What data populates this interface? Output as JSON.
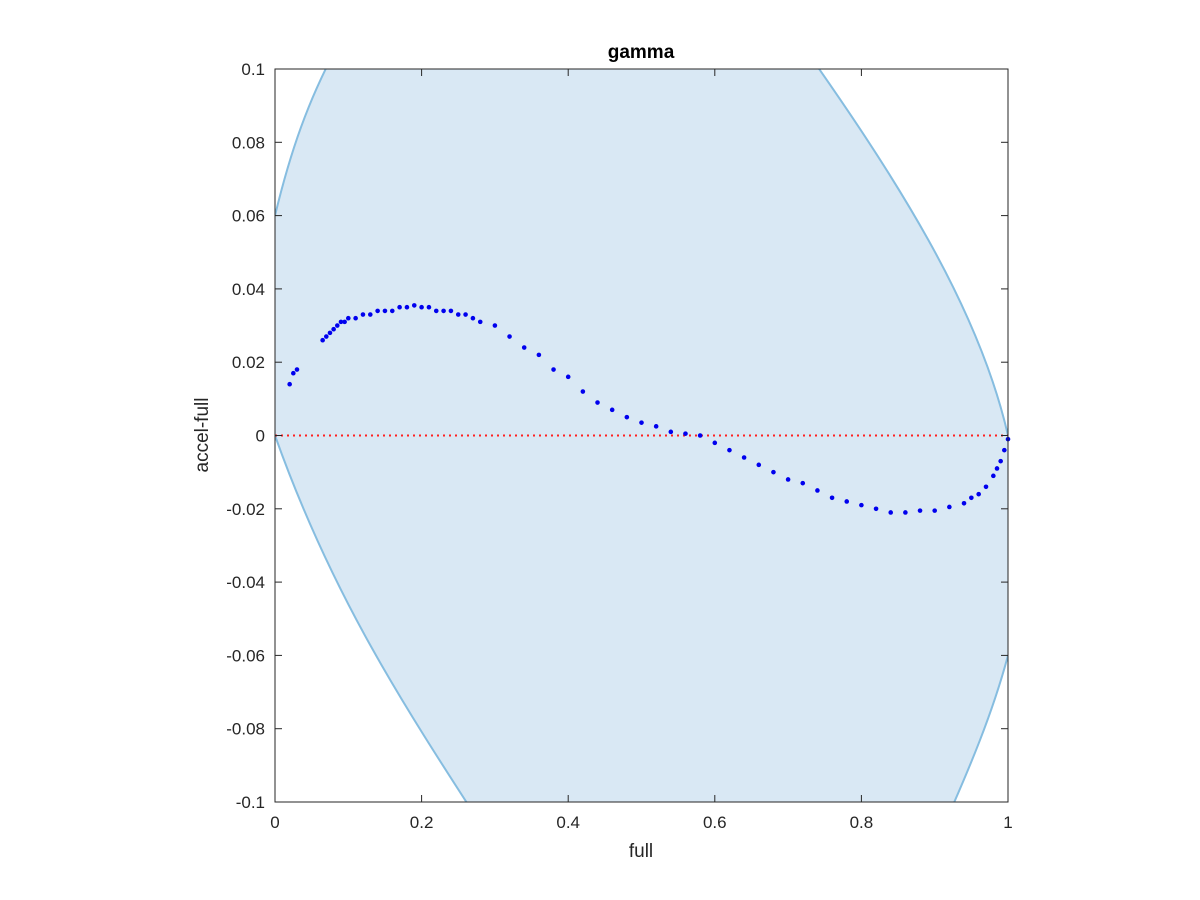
{
  "chart_data": {
    "type": "scatter",
    "title": "gamma",
    "xlabel": "full",
    "ylabel": "accel-full",
    "xlim": [
      0,
      1
    ],
    "ylim": [
      -0.1,
      0.1
    ],
    "x_ticks": [
      0,
      0.2,
      0.4,
      0.6,
      0.8,
      1
    ],
    "x_tick_labels": [
      "0",
      "0.2",
      "0.4",
      "0.6",
      "0.8",
      "1"
    ],
    "y_ticks": [
      -0.1,
      -0.08,
      -0.06,
      -0.04,
      -0.02,
      0,
      0.02,
      0.04,
      0.06,
      0.08,
      0.1
    ],
    "y_tick_labels": [
      "-0.1",
      "-0.08",
      "-0.06",
      "-0.04",
      "-0.02",
      "0",
      "0.02",
      "0.04",
      "0.06",
      "0.08",
      "0.1"
    ],
    "grid": false,
    "colors": {
      "points": "#0000ee",
      "band_fill": "#d9e8f4",
      "band_edge": "#86bde0",
      "reference_line": "#ff2020",
      "axes": "#262626"
    },
    "reference_line": {
      "y": 0,
      "style": "dotted"
    },
    "band": {
      "description_points_upper": [
        [
          0,
          0.06
        ],
        [
          0.1,
          0.1
        ],
        [
          0.7,
          0.1
        ],
        [
          1,
          0
        ]
      ],
      "description_points_lower": [
        [
          0,
          0
        ],
        [
          0.3,
          -0.1
        ],
        [
          0.9,
          -0.1
        ],
        [
          1,
          -0.06
        ]
      ]
    },
    "series": [
      {
        "x": [
          0.02,
          0.025,
          0.03,
          0.065,
          0.07,
          0.075,
          0.08,
          0.085,
          0.09,
          0.095,
          0.1,
          0.11,
          0.12,
          0.13,
          0.14,
          0.15,
          0.16,
          0.17,
          0.18,
          0.19,
          0.2,
          0.21,
          0.22,
          0.23,
          0.24,
          0.25,
          0.26,
          0.27,
          0.28,
          0.3,
          0.32,
          0.34,
          0.36,
          0.38,
          0.4,
          0.42,
          0.44,
          0.46,
          0.48,
          0.5,
          0.52,
          0.54,
          0.56,
          0.58,
          0.6,
          0.62,
          0.64,
          0.66,
          0.68,
          0.7,
          0.72,
          0.74,
          0.76,
          0.78,
          0.8,
          0.82,
          0.84,
          0.86,
          0.88,
          0.9,
          0.92,
          0.94,
          0.95,
          0.96,
          0.97,
          0.98,
          0.985,
          0.99,
          0.995,
          1.0
        ],
        "y": [
          0.014,
          0.017,
          0.018,
          0.026,
          0.027,
          0.028,
          0.029,
          0.03,
          0.031,
          0.031,
          0.032,
          0.032,
          0.033,
          0.033,
          0.034,
          0.034,
          0.034,
          0.035,
          0.035,
          0.0355,
          0.035,
          0.035,
          0.034,
          0.034,
          0.034,
          0.033,
          0.033,
          0.032,
          0.031,
          0.03,
          0.027,
          0.024,
          0.022,
          0.018,
          0.016,
          0.012,
          0.009,
          0.007,
          0.005,
          0.0035,
          0.0025,
          0.001,
          0.0005,
          0.0,
          -0.002,
          -0.004,
          -0.006,
          -0.008,
          -0.01,
          -0.012,
          -0.013,
          -0.015,
          -0.017,
          -0.018,
          -0.019,
          -0.02,
          -0.021,
          -0.021,
          -0.0205,
          -0.0205,
          -0.0195,
          -0.0185,
          -0.017,
          -0.016,
          -0.014,
          -0.011,
          -0.009,
          -0.007,
          -0.004,
          -0.001
        ]
      }
    ]
  }
}
